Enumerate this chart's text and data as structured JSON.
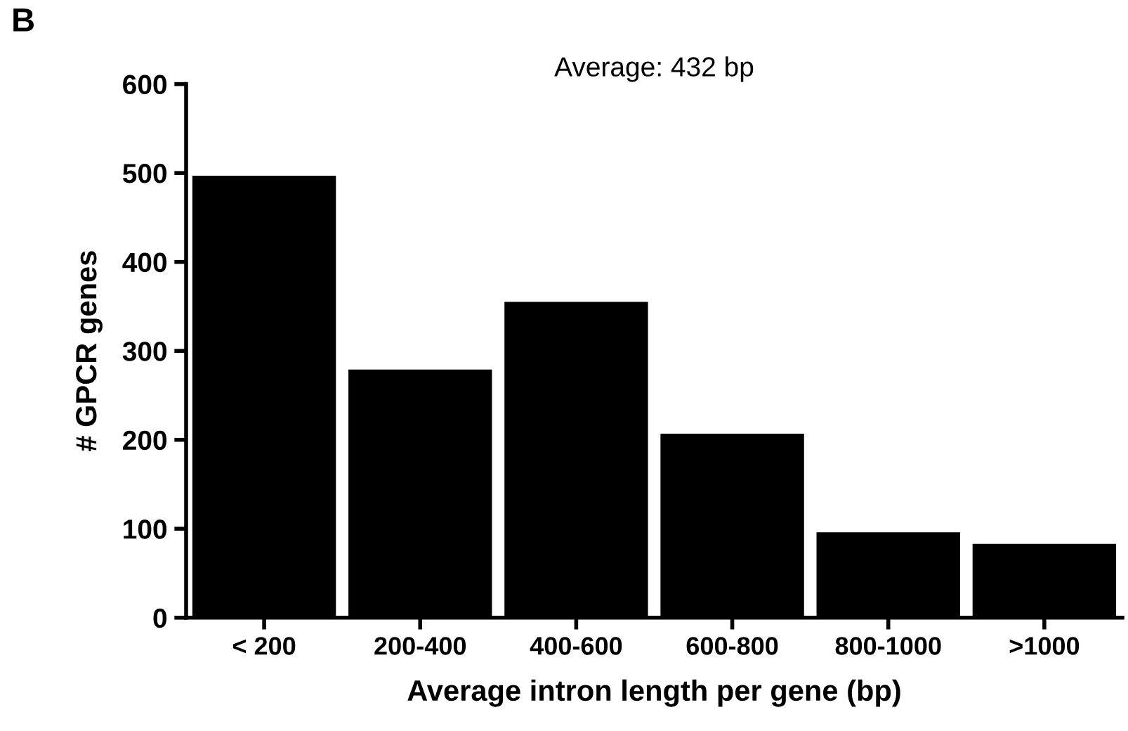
{
  "chart_data": {
    "type": "bar",
    "title": "Average: 432 bp",
    "xlabel": "Average intron length per gene (bp)",
    "ylabel": "# GPCR genes",
    "categories": [
      "< 200",
      "200-400",
      "400-600",
      "600-800",
      "800-1000",
      ">1000"
    ],
    "values": [
      497,
      279,
      355,
      207,
      96,
      83
    ],
    "color": "#000000",
    "ylim": [
      0,
      600
    ],
    "yticks": [
      0,
      100,
      200,
      300,
      400,
      500,
      600
    ],
    "grid": false,
    "legend": false,
    "annotations": [
      "B"
    ]
  }
}
